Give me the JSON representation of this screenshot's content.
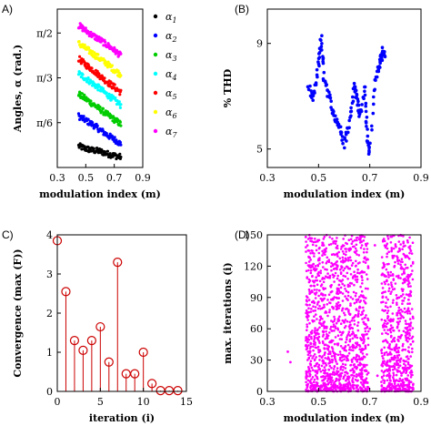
{
  "chart_data": [
    {
      "panel_label": "A)",
      "type": "scatter",
      "xlabel": "modulation index (m)",
      "ylabel": "Angles, α (rad.)",
      "xlim": [
        0.3,
        0.9
      ],
      "ylim": [
        0,
        1.85
      ],
      "x_ticks": [
        "0.3",
        "0.5",
        "0.7",
        "0.9"
      ],
      "y_ticks": [
        "π/6",
        "π/3",
        "π/2"
      ],
      "y_tick_values": [
        0.5236,
        1.0472,
        1.5708
      ],
      "legend": "right",
      "series": [
        {
          "name": "α1",
          "color": "#000000",
          "points": [
            [
              0.45,
              0.25
            ],
            [
              0.5,
              0.22
            ],
            [
              0.55,
              0.2
            ],
            [
              0.6,
              0.19
            ],
            [
              0.65,
              0.16
            ],
            [
              0.7,
              0.14
            ],
            [
              0.75,
              0.12
            ]
          ]
        },
        {
          "name": "α2",
          "color": "#0000ff",
          "points": [
            [
              0.45,
              0.6
            ],
            [
              0.5,
              0.55
            ],
            [
              0.55,
              0.5
            ],
            [
              0.6,
              0.44
            ],
            [
              0.65,
              0.38
            ],
            [
              0.7,
              0.33
            ],
            [
              0.75,
              0.27
            ]
          ]
        },
        {
          "name": "α3",
          "color": "#00cc00",
          "points": [
            [
              0.45,
              0.86
            ],
            [
              0.5,
              0.8
            ],
            [
              0.55,
              0.74
            ],
            [
              0.6,
              0.68
            ],
            [
              0.65,
              0.62
            ],
            [
              0.7,
              0.56
            ],
            [
              0.75,
              0.5
            ]
          ]
        },
        {
          "name": "α4",
          "color": "#00ffff",
          "points": [
            [
              0.45,
              1.1
            ],
            [
              0.5,
              1.04
            ],
            [
              0.55,
              0.98
            ],
            [
              0.6,
              0.92
            ],
            [
              0.65,
              0.85
            ],
            [
              0.7,
              0.79
            ],
            [
              0.75,
              0.72
            ]
          ]
        },
        {
          "name": "α5",
          "color": "#ff0000",
          "points": [
            [
              0.45,
              1.27
            ],
            [
              0.5,
              1.2
            ],
            [
              0.55,
              1.14
            ],
            [
              0.6,
              1.07
            ],
            [
              0.65,
              1.0
            ],
            [
              0.7,
              0.94
            ],
            [
              0.75,
              0.87
            ]
          ]
        },
        {
          "name": "α6",
          "color": "#ffff00",
          "points": [
            [
              0.45,
              1.45
            ],
            [
              0.5,
              1.39
            ],
            [
              0.55,
              1.33
            ],
            [
              0.6,
              1.27
            ],
            [
              0.65,
              1.21
            ],
            [
              0.7,
              1.14
            ],
            [
              0.75,
              1.08
            ]
          ]
        },
        {
          "name": "α7",
          "color": "#ff00ff",
          "points": [
            [
              0.45,
              1.66
            ],
            [
              0.5,
              1.6
            ],
            [
              0.55,
              1.54
            ],
            [
              0.6,
              1.49
            ],
            [
              0.65,
              1.43
            ],
            [
              0.7,
              1.37
            ],
            [
              0.75,
              1.3
            ]
          ]
        }
      ]
    },
    {
      "panel_label": "(B)",
      "type": "scatter",
      "xlabel": "modulation index (m)",
      "ylabel": "% THD",
      "xlim": [
        0.3,
        0.9
      ],
      "ylim": [
        4.3,
        10.3
      ],
      "x_ticks": [
        "0.3",
        "0.5",
        "0.7",
        "0.9"
      ],
      "y_ticks": [
        "5",
        "9"
      ],
      "y_tick_values": [
        5,
        9
      ],
      "series": [
        {
          "color": "#0000ff",
          "points": [
            [
              0.46,
              7.3
            ],
            [
              0.48,
              6.9
            ],
            [
              0.5,
              8.2
            ],
            [
              0.51,
              9.2
            ],
            [
              0.52,
              7.8
            ],
            [
              0.54,
              7.0
            ],
            [
              0.56,
              6.3
            ],
            [
              0.58,
              5.9
            ],
            [
              0.6,
              5.2
            ],
            [
              0.62,
              6.0
            ],
            [
              0.64,
              7.4
            ],
            [
              0.65,
              7.0
            ],
            [
              0.66,
              6.2
            ],
            [
              0.68,
              7.3
            ],
            [
              0.69,
              5.6
            ],
            [
              0.7,
              4.8
            ],
            [
              0.72,
              7.7
            ],
            [
              0.74,
              8.2
            ],
            [
              0.75,
              8.7
            ],
            [
              0.76,
              8.5
            ]
          ]
        }
      ]
    },
    {
      "panel_label": "C)",
      "type": "stem",
      "xlabel": "iteration (i)",
      "ylabel": "Convergence (max (F))",
      "xlim": [
        0,
        15
      ],
      "ylim": [
        0,
        4
      ],
      "x_ticks": [
        "0",
        "5",
        "10",
        "15"
      ],
      "y_ticks": [
        "0",
        "1",
        "2",
        "3",
        "4"
      ],
      "y_tick_values": [
        0,
        1,
        2,
        3,
        4
      ],
      "series": [
        {
          "color": "#cc0000",
          "points": [
            [
              0,
              3.85
            ],
            [
              1,
              2.55
            ],
            [
              2,
              1.3
            ],
            [
              3,
              1.05
            ],
            [
              4,
              1.3
            ],
            [
              5,
              1.65
            ],
            [
              6,
              0.75
            ],
            [
              7,
              3.3
            ],
            [
              8,
              0.45
            ],
            [
              9,
              0.45
            ],
            [
              10,
              1.0
            ],
            [
              11,
              0.2
            ],
            [
              12,
              0.02
            ],
            [
              13,
              0.02
            ],
            [
              14,
              0.02
            ]
          ]
        }
      ]
    },
    {
      "panel_label": "(D)",
      "type": "scatter",
      "xlabel": "modulation index (m)",
      "ylabel": "max. iterations (i)",
      "xlim": [
        0.3,
        0.9
      ],
      "ylim": [
        0,
        150
      ],
      "x_ticks": [
        "0.3",
        "0.5",
        "0.7",
        "0.9"
      ],
      "y_ticks": [
        "0",
        "30",
        "60",
        "90",
        "120",
        "150"
      ],
      "y_tick_values": [
        0,
        30,
        60,
        90,
        120,
        150
      ],
      "series": [
        {
          "color": "#ff00ff",
          "points": [
            [
              0.38,
              38
            ],
            [
              0.39,
              28
            ],
            [
              0.45,
              148
            ],
            [
              0.47,
              8
            ],
            [
              0.48,
              122
            ],
            [
              0.5,
              55
            ],
            [
              0.52,
              140
            ],
            [
              0.53,
              25
            ],
            [
              0.55,
              88
            ],
            [
              0.57,
              12
            ],
            [
              0.58,
              102
            ],
            [
              0.6,
              66
            ],
            [
              0.62,
              135
            ],
            [
              0.63,
              30
            ],
            [
              0.65,
              45
            ],
            [
              0.67,
              115
            ],
            [
              0.68,
              20
            ],
            [
              0.7,
              60
            ],
            [
              0.72,
              140
            ],
            [
              0.73,
              15
            ],
            [
              0.75,
              90
            ],
            [
              0.77,
              35
            ],
            [
              0.79,
              128
            ],
            [
              0.8,
              10
            ],
            [
              0.82,
              70
            ],
            [
              0.84,
              22
            ],
            [
              0.85,
              108
            ],
            [
              0.86,
              45
            ]
          ]
        }
      ]
    }
  ]
}
